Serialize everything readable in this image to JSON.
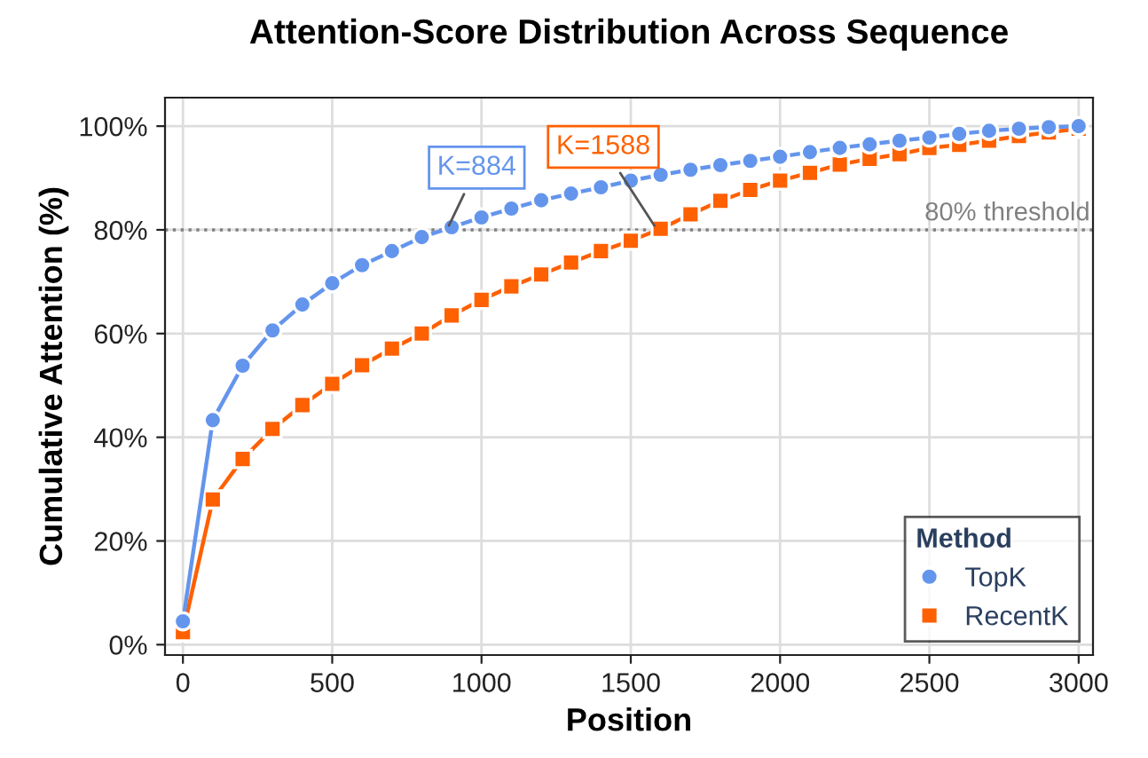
{
  "chart_data": {
    "type": "line",
    "title": "Attention-Score Distribution Across Sequence",
    "xlabel": "Position",
    "ylabel": "Cumulative Attention (%)",
    "legend_title": "Method",
    "x": [
      0,
      100,
      200,
      300,
      400,
      500,
      600,
      700,
      800,
      900,
      1000,
      1100,
      1200,
      1300,
      1400,
      1500,
      1600,
      1700,
      1800,
      1900,
      2000,
      2100,
      2200,
      2300,
      2400,
      2500,
      2600,
      2700,
      2800,
      2900,
      3000
    ],
    "series": [
      {
        "name": "TopK",
        "color": "#6495ed",
        "marker": "circle",
        "values": [
          4.5,
          43.3,
          53.8,
          60.6,
          65.6,
          69.7,
          73.2,
          75.9,
          78.6,
          80.5,
          82.4,
          84.1,
          85.7,
          87.0,
          88.2,
          89.5,
          90.6,
          91.6,
          92.5,
          93.3,
          94.1,
          95.0,
          95.8,
          96.5,
          97.2,
          97.8,
          98.5,
          99.1,
          99.5,
          99.8,
          100
        ]
      },
      {
        "name": "RecentK",
        "color": "#ff6000",
        "marker": "square",
        "values": [
          2.4,
          28.0,
          35.8,
          41.6,
          46.2,
          50.3,
          53.9,
          57.1,
          60.0,
          63.5,
          66.5,
          69.1,
          71.4,
          73.7,
          75.9,
          77.9,
          80.2,
          83.0,
          85.6,
          87.7,
          89.5,
          91.0,
          92.6,
          93.7,
          94.6,
          95.8,
          96.4,
          97.2,
          98.1,
          98.8,
          99.5
        ]
      }
    ],
    "annotations": [
      {
        "text": "K=884",
        "x": 884,
        "y": 80
      },
      {
        "text": "K=1588",
        "x": 1588,
        "y": 80
      }
    ],
    "ref_lines": [
      {
        "axis": "y",
        "value": 80,
        "label": "80% threshold",
        "color": "#808080",
        "line_style": "dotted"
      }
    ],
    "xlim": [
      -60,
      3048
    ],
    "ylim": [
      -2,
      105.5
    ],
    "xticks": [
      0,
      500,
      1000,
      1500,
      2000,
      2500,
      3000
    ],
    "yticks": [
      {
        "value": 0,
        "label": "0%"
      },
      {
        "value": 20,
        "label": "20%"
      },
      {
        "value": 40,
        "label": "40%"
      },
      {
        "value": 60,
        "label": "60%"
      },
      {
        "value": 80,
        "label": "80%"
      },
      {
        "value": 100,
        "label": "100%"
      }
    ],
    "grid": true,
    "legend": "bottom right",
    "line_style": "solid"
  }
}
